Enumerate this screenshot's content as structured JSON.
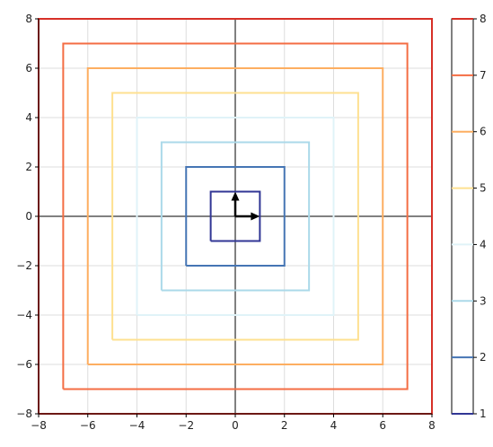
{
  "chart_data": [
    {
      "type": "line",
      "title": "",
      "xlabel": "",
      "ylabel": "",
      "xlim": [
        -8,
        8
      ],
      "ylim": [
        -8,
        8
      ],
      "grid": true,
      "axes_lines_through_origin": true,
      "x_ticks": [
        -8,
        -6,
        -4,
        -2,
        0,
        2,
        4,
        6,
        8
      ],
      "y_ticks": [
        -8,
        -6,
        -4,
        -2,
        0,
        2,
        4,
        6,
        8
      ],
      "series": [
        {
          "level": 1,
          "color": "#313695",
          "x": [
            -1,
            1,
            1,
            -1,
            -1
          ],
          "y": [
            -1,
            -1,
            1,
            1,
            -1
          ]
        },
        {
          "level": 2,
          "color": "#4575b4",
          "x": [
            -2,
            2,
            2,
            -2,
            -2
          ],
          "y": [
            -2,
            -2,
            2,
            2,
            -2
          ]
        },
        {
          "level": 3,
          "color": "#abd9e9",
          "x": [
            -3,
            3,
            3,
            -3,
            -3
          ],
          "y": [
            -3,
            -3,
            3,
            3,
            -3
          ]
        },
        {
          "level": 4,
          "color": "#e0f3f8",
          "x": [
            -4,
            4,
            4,
            -4,
            -4
          ],
          "y": [
            -4,
            -4,
            4,
            4,
            -4
          ]
        },
        {
          "level": 5,
          "color": "#fee090",
          "x": [
            -5,
            5,
            5,
            -5,
            -5
          ],
          "y": [
            -5,
            -5,
            5,
            5,
            -5
          ]
        },
        {
          "level": 6,
          "color": "#fdae61",
          "x": [
            -6,
            6,
            6,
            -6,
            -6
          ],
          "y": [
            -6,
            -6,
            6,
            6,
            -6
          ]
        },
        {
          "level": 7,
          "color": "#f46d43",
          "x": [
            -7,
            7,
            7,
            -7,
            -7
          ],
          "y": [
            -7,
            -7,
            7,
            7,
            -7
          ]
        },
        {
          "level": 8,
          "color": "#d73027",
          "x": [
            -8,
            8,
            8,
            -8,
            -8
          ],
          "y": [
            -8,
            -8,
            8,
            8,
            -8
          ]
        }
      ],
      "vectors": [
        {
          "x0": 0,
          "y0": 0,
          "dx": 1,
          "dy": 0,
          "color": "#000000"
        },
        {
          "x0": 0,
          "y0": 0,
          "dx": 0,
          "dy": 1,
          "color": "#000000"
        }
      ]
    },
    {
      "type": "colorbar",
      "range": [
        1,
        8
      ],
      "ticks": [
        1,
        2,
        3,
        4,
        5,
        6,
        7,
        8
      ],
      "levels": [
        {
          "value": 1,
          "color": "#313695"
        },
        {
          "value": 2,
          "color": "#4575b4"
        },
        {
          "value": 3,
          "color": "#abd9e9"
        },
        {
          "value": 4,
          "color": "#e0f3f8"
        },
        {
          "value": 5,
          "color": "#fee090"
        },
        {
          "value": 6,
          "color": "#fdae61"
        },
        {
          "value": 7,
          "color": "#f46d43"
        },
        {
          "value": 8,
          "color": "#d73027"
        }
      ]
    }
  ]
}
